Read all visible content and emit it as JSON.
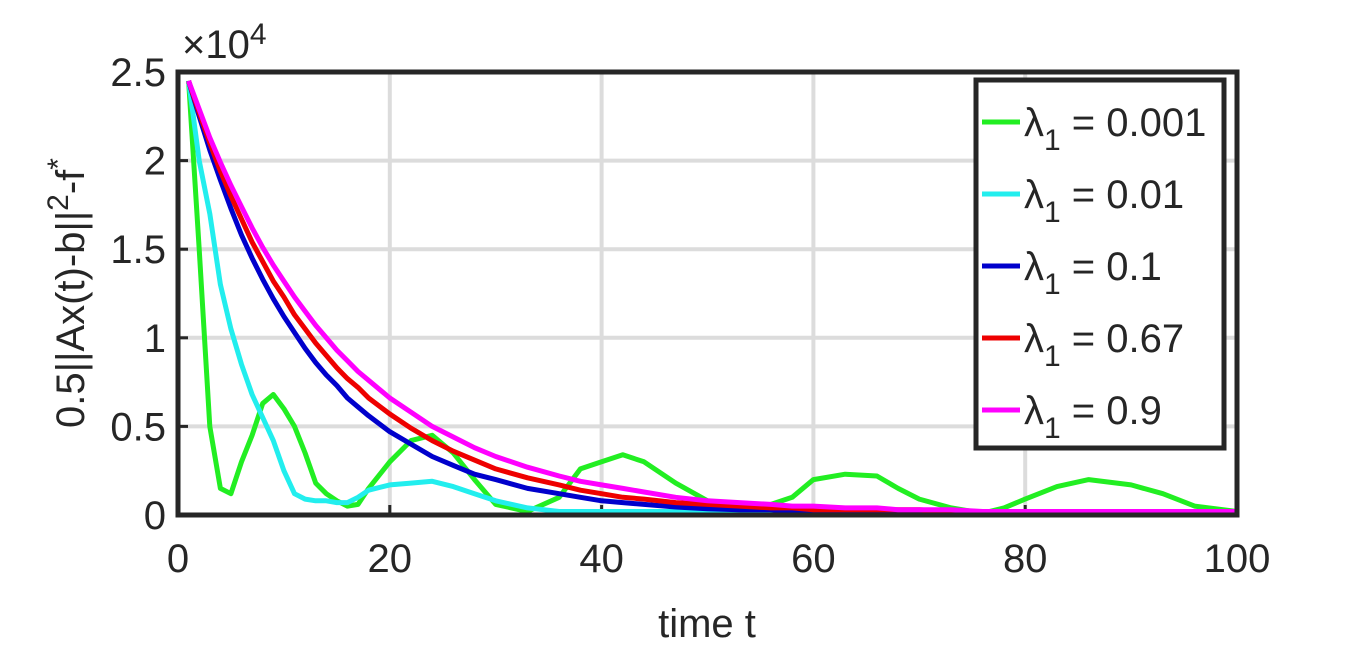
{
  "chart_data": {
    "type": "line",
    "xlabel": "time t",
    "ylabel": [
      "0.5||Ax(t)-b||",
      "2",
      "-f",
      "*"
    ],
    "y_multiplier": [
      "×10",
      "4"
    ],
    "xlim": [
      0,
      100
    ],
    "xticks": [
      0,
      20,
      40,
      60,
      80,
      100
    ],
    "ylim": [
      0,
      2.5
    ],
    "yticks": [
      0,
      0.5,
      1,
      1.5,
      2,
      2.5
    ],
    "grid": true,
    "legend": "northeast",
    "x": [
      1,
      2,
      3,
      4,
      5,
      6,
      7,
      8,
      9,
      10,
      11,
      12,
      13,
      14,
      15,
      16,
      17,
      18,
      20,
      22,
      24,
      26,
      28,
      30,
      33,
      36,
      38,
      40,
      42,
      44,
      47,
      50,
      53,
      56,
      58,
      60,
      63,
      66,
      68,
      70,
      73,
      76,
      78,
      80,
      83,
      86,
      90,
      93,
      96,
      100
    ],
    "series": [
      {
        "name": "λ1 = 0.001",
        "color": "#22ee22",
        "values": [
          2.45,
          1.5,
          0.5,
          0.15,
          0.12,
          0.3,
          0.45,
          0.63,
          0.68,
          0.6,
          0.5,
          0.35,
          0.18,
          0.12,
          0.08,
          0.05,
          0.06,
          0.15,
          0.3,
          0.42,
          0.45,
          0.35,
          0.2,
          0.06,
          0.02,
          0.1,
          0.26,
          0.3,
          0.34,
          0.3,
          0.18,
          0.08,
          0.03,
          0.06,
          0.1,
          0.2,
          0.23,
          0.22,
          0.15,
          0.09,
          0.04,
          0.01,
          0.04,
          0.09,
          0.16,
          0.2,
          0.17,
          0.12,
          0.05,
          0.02
        ]
      },
      {
        "name": "λ1 = 0.01",
        "color": "#22eeee",
        "values": [
          2.45,
          2.0,
          1.7,
          1.3,
          1.05,
          0.85,
          0.68,
          0.55,
          0.42,
          0.25,
          0.12,
          0.09,
          0.08,
          0.08,
          0.07,
          0.07,
          0.1,
          0.14,
          0.17,
          0.18,
          0.19,
          0.16,
          0.12,
          0.08,
          0.04,
          0.02,
          0.02,
          0.02,
          0.02,
          0.02,
          0.02,
          0.02,
          0.02,
          0.02,
          0.02,
          0.02,
          0.02,
          0.02,
          0.02,
          0.02,
          0.02,
          0.02,
          0.02,
          0.02,
          0.02,
          0.02,
          0.02,
          0.02,
          0.02,
          0.02
        ]
      },
      {
        "name": "λ1 = 0.1",
        "color": "#0000cc",
        "values": [
          2.45,
          2.25,
          2.06,
          1.89,
          1.73,
          1.58,
          1.45,
          1.33,
          1.22,
          1.12,
          1.03,
          0.94,
          0.86,
          0.79,
          0.73,
          0.66,
          0.61,
          0.56,
          0.47,
          0.4,
          0.33,
          0.28,
          0.23,
          0.2,
          0.15,
          0.12,
          0.1,
          0.08,
          0.07,
          0.06,
          0.045,
          0.035,
          0.03,
          0.03,
          0.02,
          0.02,
          0.02,
          0.02,
          0.02,
          0.02,
          0.02,
          0.02,
          0.02,
          0.02,
          0.02,
          0.02,
          0.02,
          0.02,
          0.02,
          0.02
        ]
      },
      {
        "name": "λ1 = 0.67",
        "color": "#ee0000",
        "values": [
          2.45,
          2.27,
          2.1,
          1.94,
          1.8,
          1.67,
          1.54,
          1.43,
          1.32,
          1.23,
          1.13,
          1.05,
          0.97,
          0.9,
          0.83,
          0.77,
          0.72,
          0.66,
          0.57,
          0.49,
          0.42,
          0.36,
          0.31,
          0.26,
          0.21,
          0.17,
          0.14,
          0.12,
          0.1,
          0.09,
          0.07,
          0.06,
          0.05,
          0.04,
          0.04,
          0.03,
          0.03,
          0.03,
          0.03,
          0.03,
          0.02,
          0.02,
          0.02,
          0.02,
          0.02,
          0.02,
          0.02,
          0.02,
          0.02,
          0.02
        ]
      },
      {
        "name": "λ1 = 0.9",
        "color": "#ff00ff",
        "values": [
          2.45,
          2.29,
          2.13,
          1.99,
          1.86,
          1.74,
          1.62,
          1.51,
          1.41,
          1.32,
          1.23,
          1.15,
          1.07,
          1.0,
          0.93,
          0.87,
          0.81,
          0.76,
          0.66,
          0.58,
          0.5,
          0.44,
          0.38,
          0.33,
          0.27,
          0.22,
          0.19,
          0.17,
          0.15,
          0.13,
          0.1,
          0.08,
          0.07,
          0.06,
          0.05,
          0.05,
          0.04,
          0.04,
          0.03,
          0.03,
          0.03,
          0.02,
          0.02,
          0.02,
          0.02,
          0.02,
          0.02,
          0.02,
          0.02,
          0.02
        ]
      }
    ]
  }
}
